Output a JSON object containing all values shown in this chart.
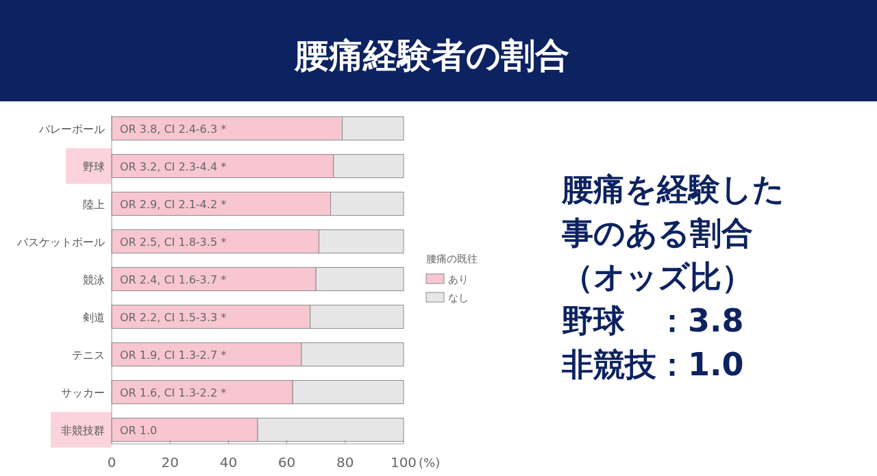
{
  "chart_data": {
    "type": "bar",
    "orientation": "horizontal",
    "stacked": true,
    "title": "腰痛経験者の割合",
    "categories": [
      "バレーボール",
      "野球",
      "陸上",
      "バスケットボール",
      "競泳",
      "剣道",
      "テニス",
      "サッカー",
      "非競技群"
    ],
    "series": [
      {
        "name": "あり",
        "color": "#f7c6d0",
        "values": [
          79,
          76,
          75,
          71,
          70,
          68,
          65,
          62,
          50
        ]
      },
      {
        "name": "なし",
        "color": "#e6e6e6",
        "values": [
          21,
          24,
          25,
          29,
          30,
          32,
          35,
          38,
          50
        ]
      }
    ],
    "xlim": [
      0,
      100
    ],
    "xticks": [
      0,
      20,
      40,
      60,
      80,
      100
    ],
    "xlabel": "(%)",
    "legend": "right",
    "legend_title": "腰痛の既往",
    "grid": false,
    "annotations": [
      "OR 3.8, CI 2.4-6.3 *",
      "OR 3.2, CI 2.3-4.4 *",
      "OR 2.9, CI 2.1-4.2 *",
      "OR 2.5, CI 1.8-3.5 *",
      "OR 2.4, CI 1.6-3.7 *",
      "OR 2.2, CI 1.5-3.3 *",
      "OR 1.9, CI 1.3-2.7 *",
      "OR 1.6, CI 1.3-2.2 *",
      "OR 1.0",
      "腰痛を経験した",
      "事のある割合",
      "（オッズ比）",
      "野球　：3.8",
      "非競技：1.0"
    ]
  }
}
